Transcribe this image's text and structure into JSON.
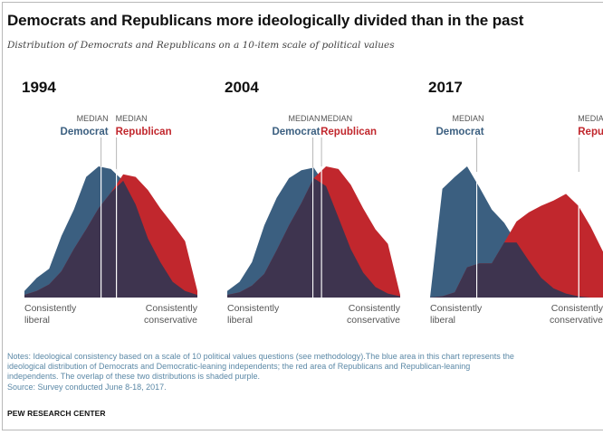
{
  "title": "Democrats and Republicans more ideologically divided than in the past",
  "subtitle": "Distribution of Democrats and Republicans on a 10-item scale of political values",
  "colors": {
    "democrat": "#3b5f80",
    "republican": "#c1272d",
    "overlap": "#3e344f",
    "median_line": "#ffffff",
    "label_gray": "#555555"
  },
  "chart_data": [
    {
      "type": "area",
      "title": "1994",
      "x_left_label": "Consistently\nliberal",
      "x_right_label": "Consistently\nconservative",
      "median_labels": {
        "dem_top": "MEDIAN",
        "dem_name": "Democrat",
        "rep_top": "MEDIAN",
        "rep_name": "Republican"
      },
      "median_democrat": 4.43,
      "median_republican": 5.32,
      "series": [
        {
          "name": "Democrat",
          "values": [
            0.05,
            0.15,
            0.22,
            0.47,
            0.67,
            0.92,
            1.0,
            0.98,
            0.89,
            0.71,
            0.45,
            0.27,
            0.12,
            0.05,
            0.02
          ]
        },
        {
          "name": "Republican",
          "values": [
            0.02,
            0.05,
            0.1,
            0.2,
            0.37,
            0.52,
            0.68,
            0.8,
            0.94,
            0.92,
            0.82,
            0.68,
            0.56,
            0.43,
            0.05
          ]
        }
      ]
    },
    {
      "type": "area",
      "title": "2004",
      "x_left_label": "Consistently\nliberal",
      "x_right_label": "Consistently\nconservative",
      "median_labels": {
        "dem_top": "MEDIAN",
        "dem_name": "Democrat",
        "rep_top": "MEDIAN",
        "rep_name": "Republican"
      },
      "median_democrat": 4.95,
      "median_republican": 5.45,
      "series": [
        {
          "name": "Democrat",
          "values": [
            0.05,
            0.12,
            0.27,
            0.55,
            0.76,
            0.91,
            0.97,
            0.99,
            0.85,
            0.61,
            0.37,
            0.19,
            0.08,
            0.03,
            0.01
          ]
        },
        {
          "name": "Republican",
          "values": [
            0.02,
            0.04,
            0.09,
            0.18,
            0.36,
            0.55,
            0.72,
            0.91,
            1.0,
            0.98,
            0.86,
            0.68,
            0.52,
            0.41,
            0.02
          ]
        }
      ]
    },
    {
      "type": "area",
      "title": "2017",
      "x_left_label": "Consistently\nliberal",
      "x_right_label": "Consistently\nconservative",
      "median_labels": {
        "dem_top": "MEDIAN",
        "dem_name": "Democrat",
        "rep_top": "MEDIAN",
        "rep_name": "Republican"
      },
      "median_democrat": 2.7,
      "median_republican": 8.6,
      "series": [
        {
          "name": "Democrat",
          "values": [
            0.0,
            0.83,
            0.92,
            1.0,
            0.84,
            0.67,
            0.57,
            0.42,
            0.28,
            0.15,
            0.07,
            0.03,
            0.01,
            0.0,
            0.0
          ]
        },
        {
          "name": "Republican",
          "values": [
            0.0,
            0.01,
            0.04,
            0.23,
            0.26,
            0.26,
            0.42,
            0.58,
            0.65,
            0.7,
            0.74,
            0.79,
            0.7,
            0.54,
            0.35
          ]
        }
      ]
    }
  ],
  "notes": {
    "line1": "Notes: Ideological consistency based on a scale of 10 political values questions (see methodology).The blue area in this chart represents the",
    "line2": "ideological distribution of Democrats and Democratic-leaning independents; the red area of Republicans and Republican-leaning",
    "line3": "independents. The overlap of these two distributions is shaded purple.",
    "source": "Source: Survey conducted June 8-18, 2017."
  },
  "brand": "PEW RESEARCH CENTER"
}
